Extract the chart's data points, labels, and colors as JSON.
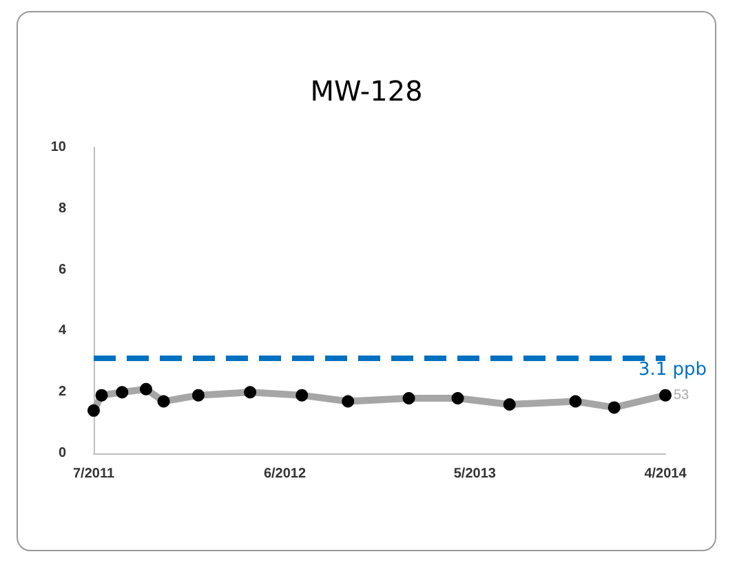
{
  "chart_data": {
    "type": "line",
    "title": "MW-128",
    "x": [
      "2011-07",
      "2011-07-15",
      "2011-08-20",
      "2011-10",
      "2011-11",
      "2012-01",
      "2012-04",
      "2012-07",
      "2012-09-20",
      "2013-01-05",
      "2013-04",
      "2013-07",
      "2013-10-25",
      "2014-01",
      "2014-04"
    ],
    "series": [
      {
        "color": "#a6a6a6",
        "values": [
          1.4,
          1.9,
          2.0,
          2.1,
          1.7,
          1.9,
          2.0,
          1.9,
          1.7,
          1.8,
          1.8,
          1.6,
          1.7,
          1.5,
          1.9
        ]
      }
    ],
    "xlim": [
      "2011-07",
      "2014-04"
    ],
    "xticks": [
      {
        "value": "2011-07",
        "label": "7/2011"
      },
      {
        "value": "2012-06",
        "label": "6/2012"
      },
      {
        "value": "2013-05",
        "label": "5/2013"
      },
      {
        "value": "2014-04",
        "label": "4/2014"
      }
    ],
    "ylim": [
      0,
      10
    ],
    "yticks": [
      0,
      2,
      4,
      6,
      8,
      10
    ],
    "ref_lines": [
      {
        "axis": "y",
        "value": 3.1,
        "label": "3.1 ppb",
        "color": "#0070c0",
        "line_style": "dashed"
      }
    ],
    "annotations": [
      {
        "text": "53",
        "x": "2014-04",
        "y": 1.9
      }
    ],
    "marker": "circle",
    "grid": false
  }
}
